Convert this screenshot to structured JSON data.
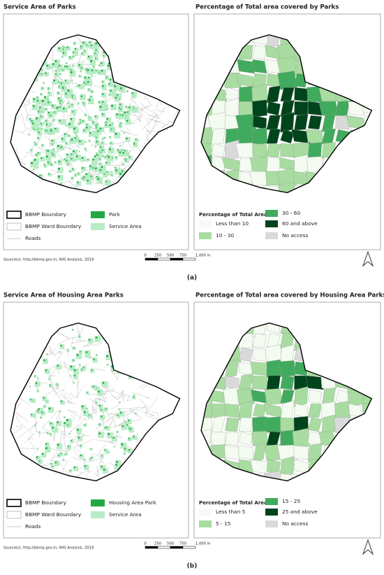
{
  "panels": [
    {
      "label": "(a)",
      "left": {
        "title": "Service Area of Parks",
        "legend": [
          "BBMP Boundary",
          "BBMP Ward Boundary",
          "Roads",
          "Park",
          "Service Area"
        ]
      },
      "right": {
        "title": "Percentage of Total area covered by Parks",
        "legend_title": "Percentage of Total Area",
        "legend": [
          "Less than 10",
          "30 - 60",
          "10 - 30",
          "60 and above",
          "No access"
        ]
      },
      "scale_bar": [
        "0",
        "250",
        "500",
        "750",
        "1,000 m"
      ],
      "source": "Source(s): http://bbmp.gov.in; IIHS Analysis, 2019"
    },
    {
      "label": "(b)",
      "left": {
        "title": "Service Area of Housing Area Parks",
        "legend": [
          "BBMP Boundary",
          "BBMP Ward Boundary",
          "Roads",
          "Housing Area Park",
          "Service Area"
        ]
      },
      "right": {
        "title": "Percentage of Total area covered by Housing Area Parks",
        "legend_title": "Percentage of Total Area",
        "legend": [
          "Less than 5",
          "15 - 25",
          "5 - 15",
          "25 and above",
          "No access"
        ]
      },
      "scale_bar": [
        "0",
        "250",
        "500",
        "750",
        "1,000 m"
      ],
      "source": "Source(s): http://bbmp.gov.in; IIHS Analysis, 2019"
    }
  ]
}
